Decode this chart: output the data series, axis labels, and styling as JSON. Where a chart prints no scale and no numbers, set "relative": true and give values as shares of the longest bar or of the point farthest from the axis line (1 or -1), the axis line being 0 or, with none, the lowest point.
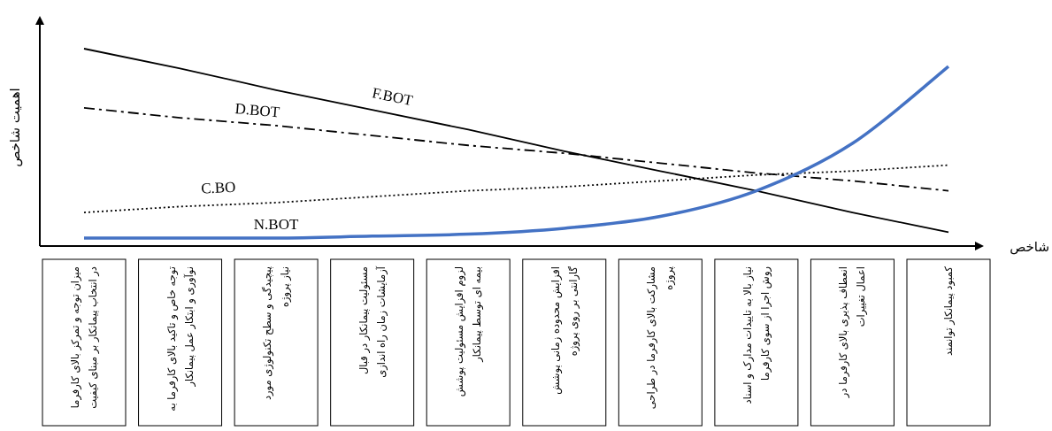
{
  "chart_data": {
    "type": "line",
    "relative": true,
    "ylabel": "اهمیت شاخص",
    "xlabel": "شاخص",
    "categories": [
      "میزان توجه و تمرکز بالای کارفرما در انتخاب پیمانکار بر مبنای کیفیت",
      "توجه خاص و تاکید بالای کارفرما به نوآوری و ابتکار عمل پیمانکار",
      "پیچیدگی و سطح تکنولوژی مورد نیاز پروژه",
      "مسئولیت پیمانکار در قبال آزمایشات زمان راه اندازی",
      "لزوم افزایش مسئولیت پوشش بیمه ای توسط پیمانکار",
      "افزایش محدوده زمانی پوشش گارانتی بر روی پروژه",
      "مشارکت بالای کارفرما در طراحی پروژه",
      "نیاز بالا به تاییدات مدارک و اسناد روش اجرا از سوی کارفرما",
      "انعطاف پذیری بالای کارفرما در اعمال تغییرات",
      "کمبود پیمانکار توانمند"
    ],
    "series": [
      {
        "name": "F.BOT",
        "color": "#000000",
        "line_style": "solid",
        "values": [
          1.0,
          0.9,
          0.79,
          0.69,
          0.59,
          0.48,
          0.38,
          0.28,
          0.17,
          0.07
        ]
      },
      {
        "name": "D.BOT",
        "color": "#000000",
        "line_style": "dashdot",
        "values": [
          0.7,
          0.65,
          0.61,
          0.56,
          0.51,
          0.47,
          0.42,
          0.37,
          0.33,
          0.28
        ]
      },
      {
        "name": "C.BO",
        "color": "#000000",
        "line_style": "dotted",
        "values": [
          0.17,
          0.2,
          0.22,
          0.25,
          0.28,
          0.3,
          0.33,
          0.36,
          0.38,
          0.41
        ]
      },
      {
        "name": "N.BOT",
        "color": "#4472c4",
        "line_style": "solid",
        "values": [
          0.04,
          0.04,
          0.04,
          0.05,
          0.06,
          0.09,
          0.15,
          0.28,
          0.52,
          0.91
        ]
      }
    ]
  }
}
